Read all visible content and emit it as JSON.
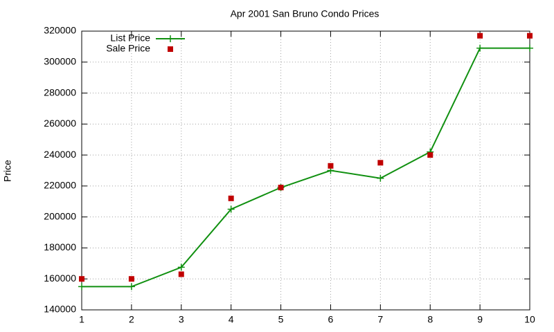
{
  "chart_data": {
    "type": "line",
    "title": "Apr 2001 San Bruno Condo Prices",
    "y_label": "Price",
    "x": [
      1,
      2,
      3,
      4,
      5,
      6,
      7,
      8,
      9,
      10
    ],
    "series": [
      {
        "name": "List Price",
        "color": "#109010",
        "mode": "linespoints",
        "values": [
          155000,
          155000,
          167500,
          205000,
          219000,
          230000,
          225000,
          242000,
          309000,
          309000
        ]
      },
      {
        "name": "Sale Price",
        "color": "#c00000",
        "mode": "points",
        "values": [
          160000,
          160000,
          163000,
          212000,
          219000,
          233000,
          235000,
          240000,
          317000,
          317000
        ]
      }
    ],
    "xlim": [
      1,
      10
    ],
    "xticks": [
      1,
      2,
      3,
      4,
      5,
      6,
      7,
      8,
      9,
      10
    ],
    "ylim": [
      140000,
      320000
    ],
    "yticks": [
      140000,
      160000,
      180000,
      200000,
      220000,
      240000,
      260000,
      280000,
      300000,
      320000
    ],
    "grid": true,
    "legend": "top-left"
  }
}
